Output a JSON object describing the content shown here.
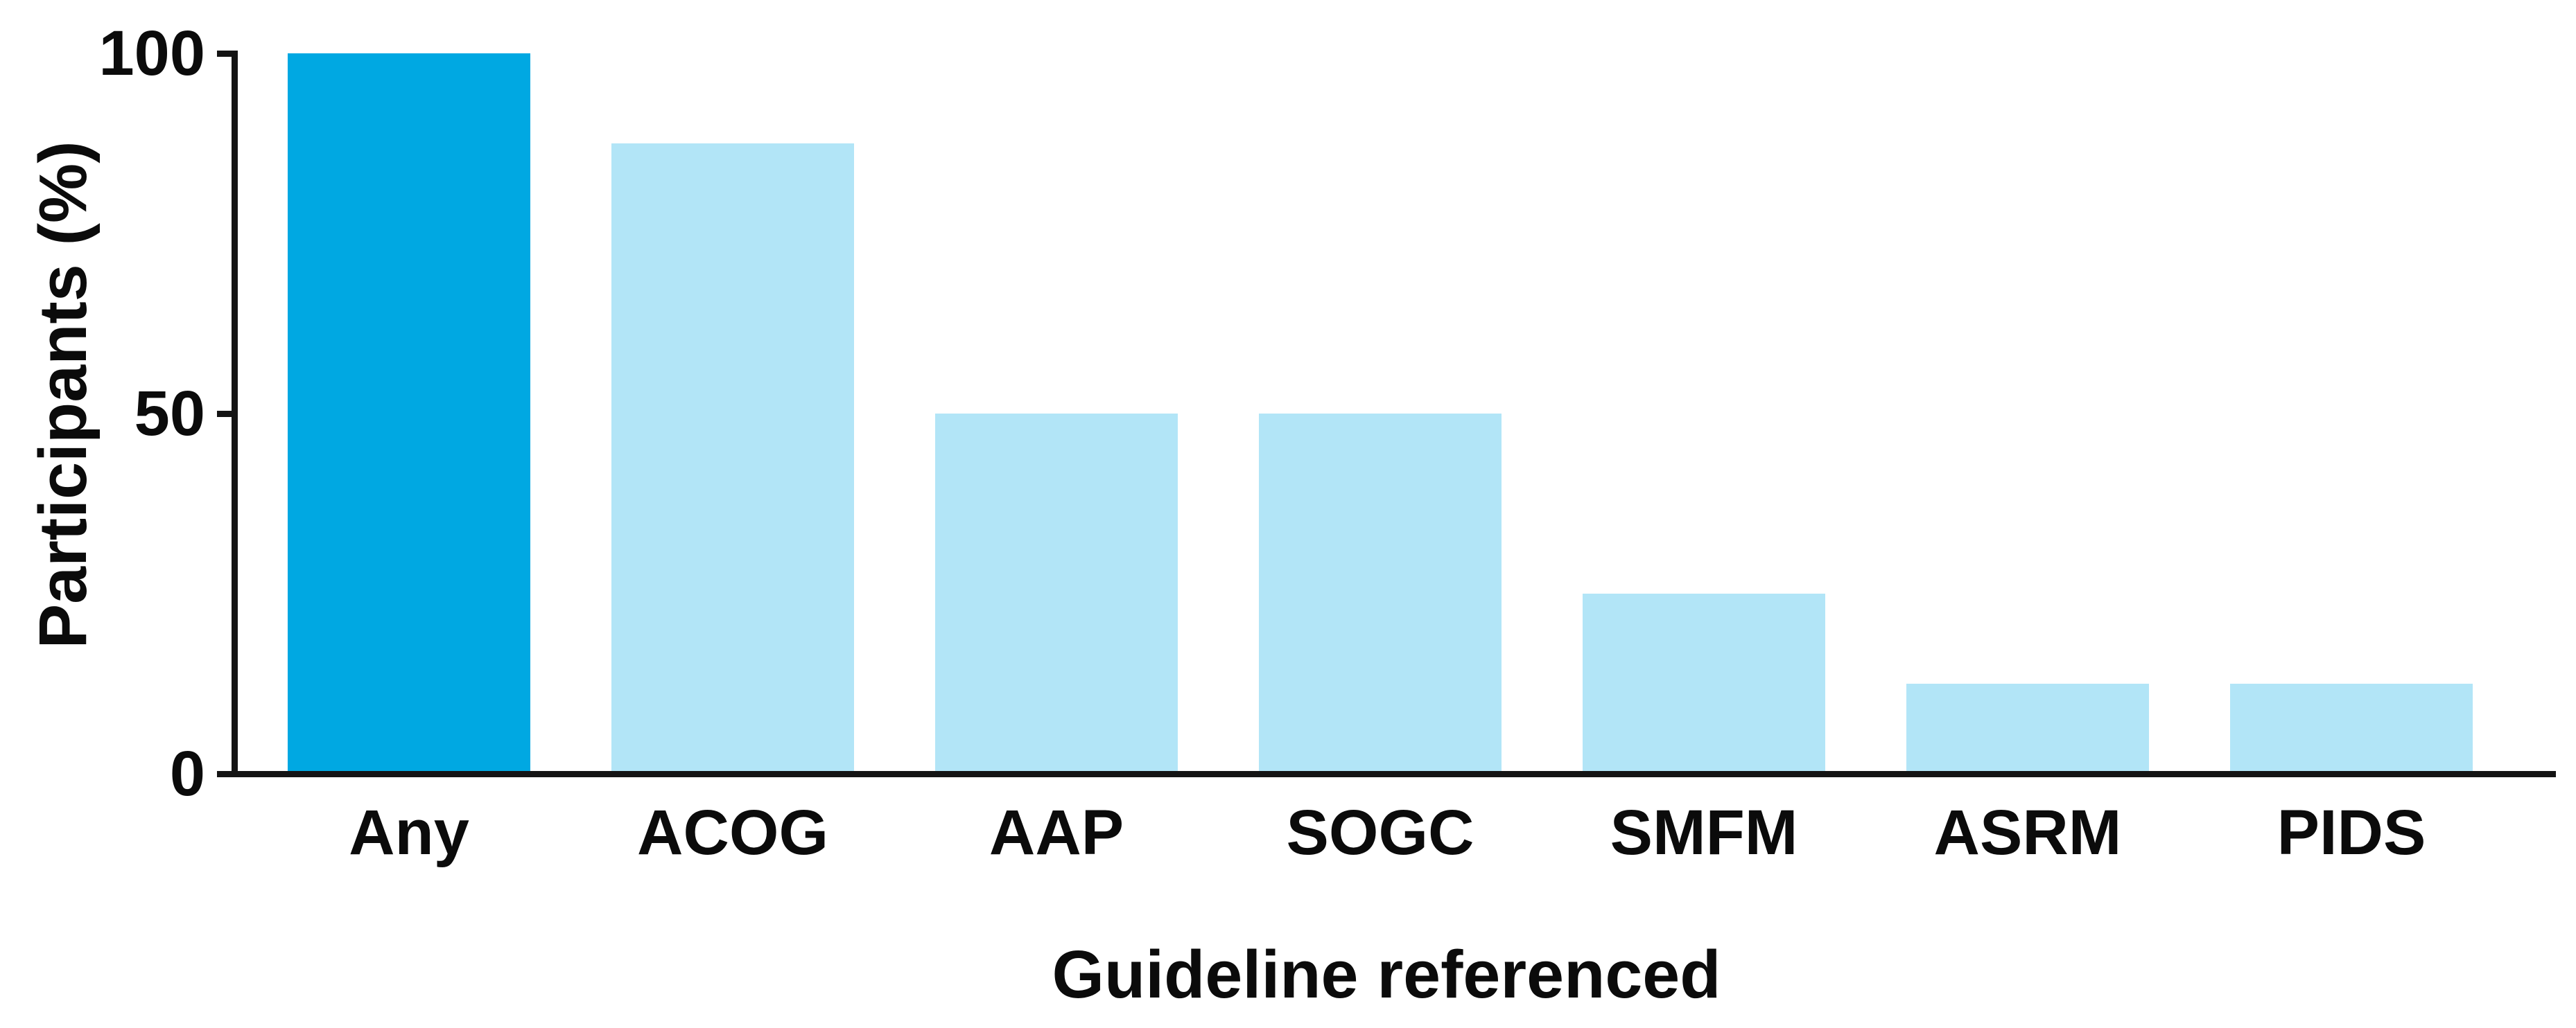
{
  "chart_data": {
    "type": "bar",
    "categories": [
      "Any",
      "ACOG",
      "AAP",
      "SOGC",
      "SMFM",
      "ASRM",
      "PIDS"
    ],
    "values": [
      100,
      87.5,
      50,
      50,
      25,
      12.5,
      12.5
    ],
    "title": "",
    "xlabel": "Guideline referenced",
    "ylabel": "Participants (%)",
    "ylim": [
      0,
      100
    ],
    "yticks": [
      0,
      50,
      100
    ],
    "grid": false,
    "legend": "none",
    "highlight_category": "Any",
    "colors": {
      "bar_highlight": "#00A8E2",
      "bar_default": "#B2E5F7",
      "axis": "#141414",
      "text": "#0b0b0b",
      "background": "#ffffff"
    }
  }
}
